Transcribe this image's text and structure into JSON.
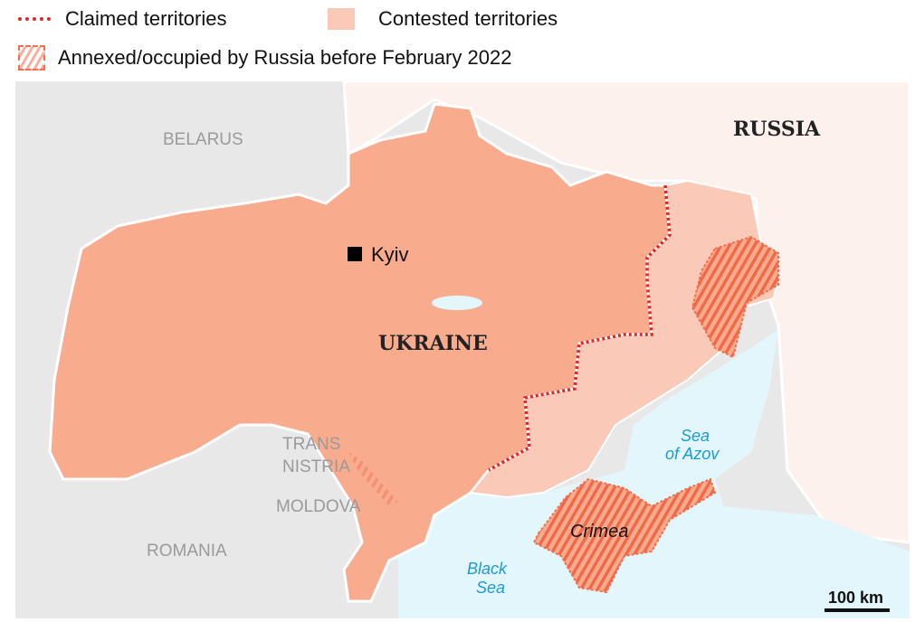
{
  "legend": {
    "claimed": "Claimed territories",
    "contested": "Contested territories",
    "annexed": "Annexed/occupied by Russia before February 2022"
  },
  "labels": {
    "belarus": "BELARUS",
    "russia": "RUSSIA",
    "ukraine": "UKRAINE",
    "kyiv": "Kyiv",
    "transnistria_1": "TRANS",
    "transnistria_2": "NISTRIA",
    "moldova": "MOLDOVA",
    "romania": "ROMANIA",
    "crimea": "Crimea",
    "azov_1": "Sea",
    "azov_2": "of Azov",
    "black_1": "Black",
    "black_2": "Sea"
  },
  "scale": {
    "label": "100 km"
  },
  "colors": {
    "ukraine": "#f9ab8e",
    "contested": "#fbc9b7",
    "russia": "#fdf1ed",
    "neighbors": "#e8e8e8",
    "sea": "#e3f6fb",
    "claimed_line": "#e0262b",
    "annexed_hatch": "#f07050",
    "water_label": "#1a9bd0"
  }
}
